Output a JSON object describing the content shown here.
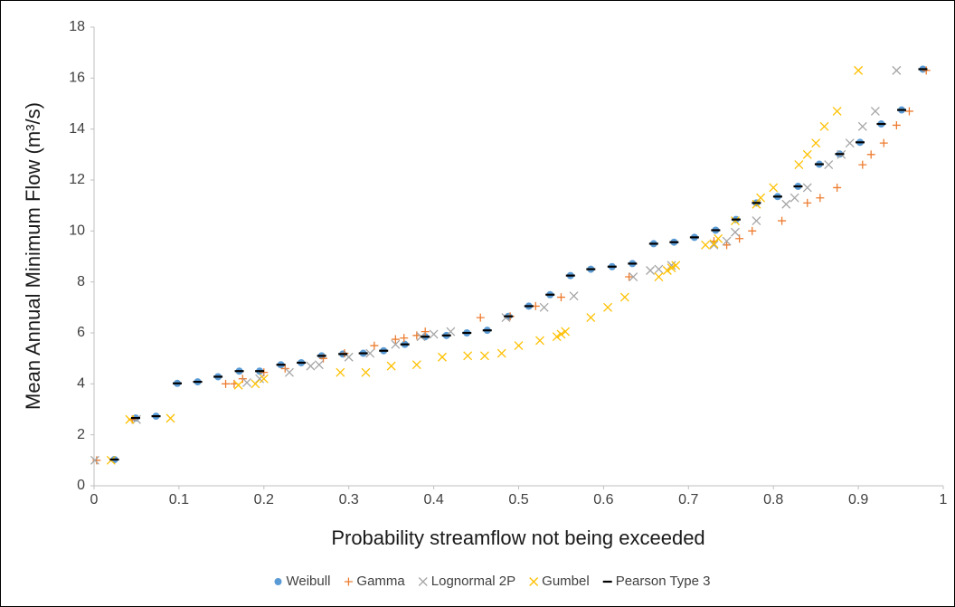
{
  "chart_data": {
    "type": "scatter",
    "x_label": "Probability streamflow not being exceeded",
    "y_label": "Mean Annual Minimum Flow (m³/s)",
    "xlim": [
      0,
      1
    ],
    "xticks": [
      0,
      0.1,
      0.2,
      0.3,
      0.4,
      0.5,
      0.6,
      0.7,
      0.8,
      0.9,
      1
    ],
    "ylim": [
      0,
      18
    ],
    "yticks": [
      0,
      2,
      4,
      6,
      8,
      10,
      12,
      14,
      16,
      18
    ],
    "grid": false,
    "legend": "bottom",
    "series": [
      {
        "name": "Weibull",
        "color": "#5b9bd5",
        "marker": "circle",
        "x": [
          0.024,
          0.049,
          0.073,
          0.098,
          0.122,
          0.146,
          0.171,
          0.195,
          0.22,
          0.244,
          0.268,
          0.293,
          0.317,
          0.341,
          0.366,
          0.39,
          0.415,
          0.439,
          0.463,
          0.488,
          0.512,
          0.537,
          0.561,
          0.585,
          0.61,
          0.634,
          0.659,
          0.683,
          0.707,
          0.732,
          0.756,
          0.78,
          0.805,
          0.829,
          0.854,
          0.878,
          0.902,
          0.927,
          0.951,
          0.976
        ],
        "values": [
          1.03,
          2.66,
          2.73,
          4.02,
          4.08,
          4.28,
          4.5,
          4.5,
          4.75,
          4.83,
          5.1,
          5.17,
          5.2,
          5.3,
          5.55,
          5.85,
          5.9,
          6.0,
          6.1,
          6.65,
          7.05,
          7.5,
          8.25,
          8.5,
          8.6,
          8.72,
          9.5,
          9.56,
          9.75,
          10.03,
          10.45,
          11.1,
          11.35,
          11.75,
          12.62,
          13.02,
          13.48,
          14.2,
          14.75,
          16.35
        ]
      },
      {
        "name": "Gamma",
        "color": "#ed7d31",
        "marker": "plus",
        "x": [
          0.003,
          0.045,
          0.155,
          0.165,
          0.175,
          0.2,
          0.225,
          0.27,
          0.295,
          0.33,
          0.355,
          0.365,
          0.38,
          0.39,
          0.455,
          0.49,
          0.52,
          0.55,
          0.63,
          0.73,
          0.745,
          0.76,
          0.775,
          0.81,
          0.84,
          0.855,
          0.875,
          0.905,
          0.915,
          0.93,
          0.945,
          0.96,
          0.98
        ],
        "values": [
          1.0,
          2.6,
          4.0,
          4.0,
          4.2,
          4.45,
          4.6,
          5.0,
          5.2,
          5.5,
          5.75,
          5.8,
          5.9,
          6.05,
          6.6,
          6.65,
          7.05,
          7.4,
          8.2,
          9.6,
          9.45,
          9.7,
          10.0,
          10.4,
          11.1,
          11.3,
          11.7,
          12.6,
          13.0,
          13.45,
          14.15,
          14.7,
          16.3
        ]
      },
      {
        "name": "Lognormal 2P",
        "color": "#a5a5a5",
        "marker": "cross",
        "x": [
          0.001,
          0.05,
          0.18,
          0.195,
          0.23,
          0.255,
          0.265,
          0.3,
          0.325,
          0.355,
          0.385,
          0.4,
          0.42,
          0.485,
          0.53,
          0.565,
          0.635,
          0.655,
          0.665,
          0.68,
          0.73,
          0.745,
          0.755,
          0.78,
          0.815,
          0.825,
          0.84,
          0.865,
          0.88,
          0.89,
          0.905,
          0.92,
          0.945
        ],
        "values": [
          1.0,
          2.6,
          4.05,
          4.2,
          4.45,
          4.7,
          4.75,
          5.05,
          5.2,
          5.55,
          5.85,
          5.95,
          6.05,
          6.6,
          7.0,
          7.45,
          8.2,
          8.45,
          8.5,
          8.65,
          9.45,
          9.6,
          9.95,
          10.4,
          11.05,
          11.3,
          11.7,
          12.6,
          13.0,
          13.45,
          14.1,
          14.7,
          16.3
        ]
      },
      {
        "name": "Gumbel",
        "color": "#ffc000",
        "marker": "cross",
        "x": [
          0.02,
          0.042,
          0.09,
          0.17,
          0.19,
          0.2,
          0.29,
          0.32,
          0.35,
          0.38,
          0.41,
          0.44,
          0.46,
          0.48,
          0.5,
          0.525,
          0.545,
          0.55,
          0.555,
          0.585,
          0.605,
          0.625,
          0.665,
          0.675,
          0.68,
          0.685,
          0.72,
          0.73,
          0.735,
          0.755,
          0.78,
          0.785,
          0.8,
          0.83,
          0.84,
          0.85,
          0.86,
          0.875,
          0.9
        ],
        "values": [
          1.0,
          2.6,
          2.65,
          3.95,
          4.0,
          4.2,
          4.45,
          4.45,
          4.7,
          4.75,
          5.05,
          5.1,
          5.1,
          5.2,
          5.5,
          5.7,
          5.85,
          5.95,
          6.05,
          6.6,
          7.0,
          7.4,
          8.2,
          8.45,
          8.55,
          8.65,
          9.45,
          9.5,
          9.7,
          10.4,
          11.05,
          11.3,
          11.7,
          12.6,
          13.0,
          13.45,
          14.1,
          14.7,
          16.3
        ]
      },
      {
        "name": "Pearson Type 3",
        "color": "#000000",
        "marker": "dash",
        "x": [
          0.024,
          0.049,
          0.073,
          0.098,
          0.122,
          0.146,
          0.171,
          0.195,
          0.22,
          0.244,
          0.268,
          0.293,
          0.317,
          0.341,
          0.366,
          0.39,
          0.415,
          0.439,
          0.463,
          0.488,
          0.512,
          0.537,
          0.561,
          0.585,
          0.61,
          0.634,
          0.659,
          0.683,
          0.707,
          0.732,
          0.756,
          0.78,
          0.805,
          0.829,
          0.854,
          0.878,
          0.902,
          0.927,
          0.951,
          0.976
        ],
        "values": [
          1.03,
          2.66,
          2.73,
          4.02,
          4.08,
          4.28,
          4.5,
          4.5,
          4.75,
          4.83,
          5.1,
          5.17,
          5.2,
          5.3,
          5.55,
          5.85,
          5.9,
          6.0,
          6.1,
          6.65,
          7.05,
          7.5,
          8.25,
          8.5,
          8.6,
          8.72,
          9.5,
          9.56,
          9.75,
          10.03,
          10.45,
          11.1,
          11.35,
          11.75,
          12.62,
          13.02,
          13.48,
          14.2,
          14.75,
          16.35
        ]
      }
    ]
  }
}
